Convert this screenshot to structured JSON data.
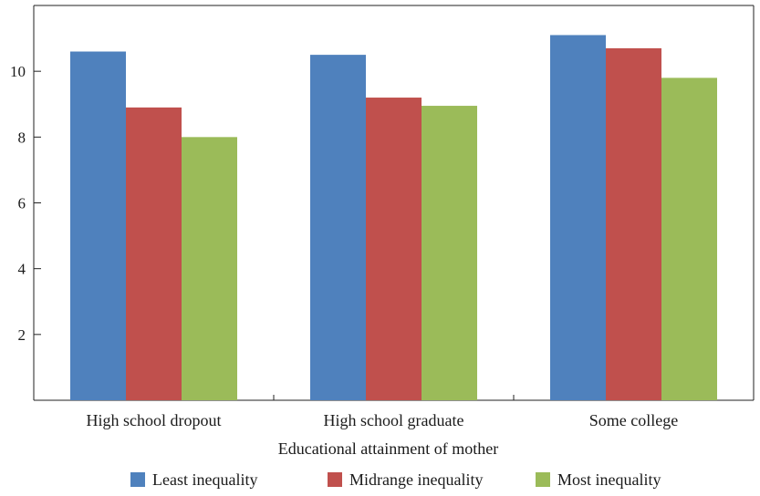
{
  "chart_data": {
    "type": "bar",
    "title": "",
    "xlabel": "Educational attainment of mother",
    "ylabel": "",
    "ylim": [
      0,
      12
    ],
    "yticks": [
      2,
      4,
      6,
      8,
      10
    ],
    "categories": [
      "High school dropout",
      "High school graduate",
      "Some college"
    ],
    "series": [
      {
        "name": "Least inequality",
        "color": "#4f81bd",
        "values": [
          10.6,
          10.5,
          11.1
        ]
      },
      {
        "name": "Midrange inequality",
        "color": "#c0504d",
        "values": [
          8.9,
          9.2,
          10.7
        ]
      },
      {
        "name": "Most inequality",
        "color": "#9bbb59",
        "values": [
          8.0,
          8.95,
          9.8
        ]
      }
    ],
    "grid": false,
    "legend_position": "bottom"
  }
}
